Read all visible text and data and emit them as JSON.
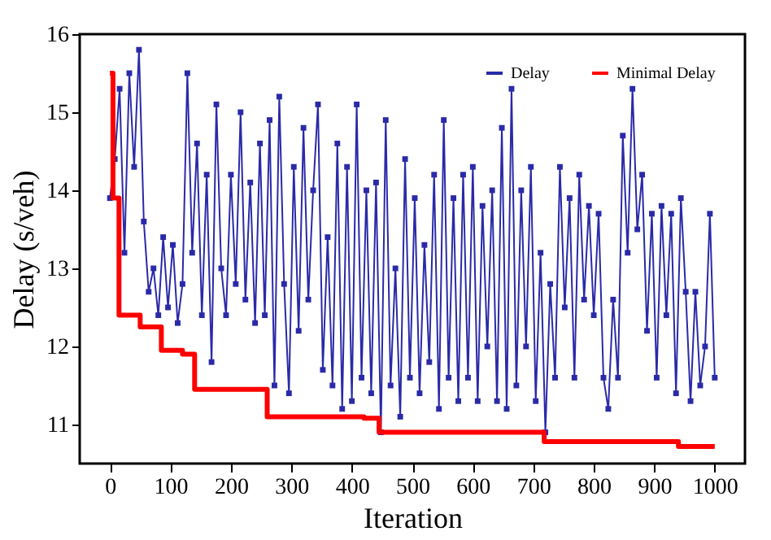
{
  "chart_data": {
    "type": "line",
    "xlabel": "Iteration",
    "ylabel": "Delay (s/veh)",
    "xlim": [
      -50,
      1050
    ],
    "ylim": [
      10.5,
      16
    ],
    "xticks": [
      0,
      100,
      200,
      300,
      400,
      500,
      600,
      700,
      800,
      900,
      1000
    ],
    "yticks": [
      11,
      12,
      13,
      14,
      15,
      16
    ],
    "grid": false,
    "legend": "top right",
    "series": [
      {
        "name": "Delay",
        "color": "#2a2aa8",
        "marker": "square",
        "x": [
          0,
          8,
          16,
          24,
          32,
          40,
          48,
          56,
          64,
          72,
          80,
          88,
          96,
          104,
          112,
          120,
          128,
          136,
          144,
          152,
          160,
          168,
          176,
          184,
          192,
          200,
          208,
          216,
          224,
          232,
          240,
          248,
          256,
          264,
          272,
          280,
          288,
          296,
          304,
          312,
          320,
          328,
          336,
          344,
          352,
          360,
          368,
          376,
          384,
          392,
          400,
          408,
          416,
          424,
          432,
          440,
          448,
          456,
          464,
          472,
          480,
          488,
          496,
          504,
          512,
          520,
          528,
          536,
          544,
          552,
          560,
          568,
          576,
          584,
          592,
          600,
          608,
          616,
          624,
          632,
          640,
          648,
          656,
          664,
          672,
          680,
          688,
          696,
          704,
          712,
          720,
          728,
          736,
          744,
          752,
          760,
          768,
          776,
          784,
          792,
          800,
          808,
          816,
          824,
          832,
          840,
          848,
          856,
          864,
          872,
          880,
          888,
          896,
          904,
          912,
          920,
          928,
          936,
          944,
          952,
          960,
          968,
          976,
          984,
          992,
          1000
        ],
        "values": [
          13.9,
          14.4,
          15.3,
          13.2,
          15.5,
          14.3,
          15.8,
          13.6,
          12.7,
          13.0,
          12.4,
          13.4,
          12.5,
          13.3,
          12.3,
          12.8,
          15.5,
          13.2,
          14.6,
          12.4,
          14.2,
          11.8,
          15.1,
          13.0,
          12.4,
          14.2,
          12.8,
          15.0,
          12.6,
          14.1,
          12.3,
          14.6,
          12.4,
          14.9,
          11.5,
          15.2,
          12.8,
          11.4,
          14.3,
          12.2,
          14.8,
          12.6,
          14.0,
          15.1,
          11.7,
          13.4,
          11.5,
          14.6,
          11.2,
          14.3,
          11.3,
          15.1,
          11.6,
          14.0,
          11.4,
          14.1,
          10.9,
          14.9,
          11.5,
          13.0,
          11.1,
          14.4,
          11.6,
          13.9,
          11.4,
          13.3,
          11.8,
          14.2,
          11.2,
          14.9,
          11.6,
          13.9,
          11.3,
          14.2,
          11.6,
          14.3,
          11.3,
          13.8,
          12.0,
          14.0,
          11.3,
          14.8,
          11.2,
          15.3,
          11.5,
          14.0,
          12.0,
          14.3,
          11.3,
          13.2,
          10.9,
          12.8,
          11.6,
          14.3,
          12.5,
          13.9,
          11.6,
          14.2,
          12.6,
          13.8,
          12.4,
          13.7,
          11.6,
          11.2,
          12.6,
          11.6,
          14.7,
          13.2,
          15.3,
          13.5,
          14.2,
          12.2,
          13.7,
          11.6,
          13.8,
          12.4,
          13.7,
          11.4,
          13.9,
          12.7,
          11.3,
          12.7,
          11.5,
          12.0,
          13.7,
          11.6
        ]
      },
      {
        "name": "Minimal Delay",
        "color": "#ff0000",
        "type": "step",
        "marker": "none",
        "x": [
          0,
          5,
          15,
          50,
          85,
          120,
          140,
          260,
          420,
          445,
          718,
          940,
          1000
        ],
        "values": [
          15.5,
          13.9,
          12.4,
          12.25,
          11.95,
          11.9,
          11.45,
          11.1,
          11.08,
          10.9,
          10.78,
          10.72,
          10.72
        ]
      }
    ]
  }
}
